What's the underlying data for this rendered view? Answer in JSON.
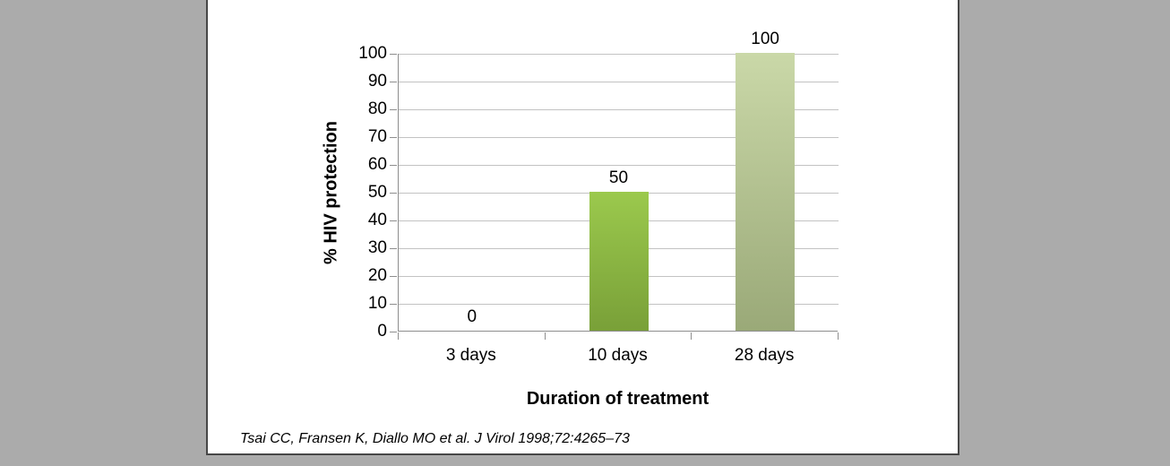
{
  "background": {
    "canvas_color": "#ababab",
    "slide_color": "#ffffff",
    "slide_border_color": "#474747"
  },
  "chart_data": {
    "type": "bar",
    "title": "",
    "categories": [
      "3 days",
      "10 days",
      "28 days"
    ],
    "values": [
      0,
      50,
      100
    ],
    "data_labels": [
      "0",
      "50",
      "100"
    ],
    "xlabel": "Duration of treatment",
    "ylabel": "% HIV protection",
    "ylim": [
      0,
      100
    ],
    "ytick_step": 10,
    "ytick_labels": [
      "0",
      "10",
      "20",
      "30",
      "40",
      "50",
      "60",
      "70",
      "80",
      "90",
      "100"
    ],
    "grid": "horizontal",
    "legend": "none",
    "gridline_color": "#c3c3c3",
    "axis_color": "#8e8e8e",
    "bar_colors": [
      null,
      {
        "top": "#9bc94d",
        "bottom": "#79a038"
      },
      {
        "top": "#cad8a8",
        "bottom": "#9aa978"
      }
    ]
  },
  "citation": "Tsai CC, Fransen K, Diallo MO et al. J Virol 1998;72:4265–73"
}
